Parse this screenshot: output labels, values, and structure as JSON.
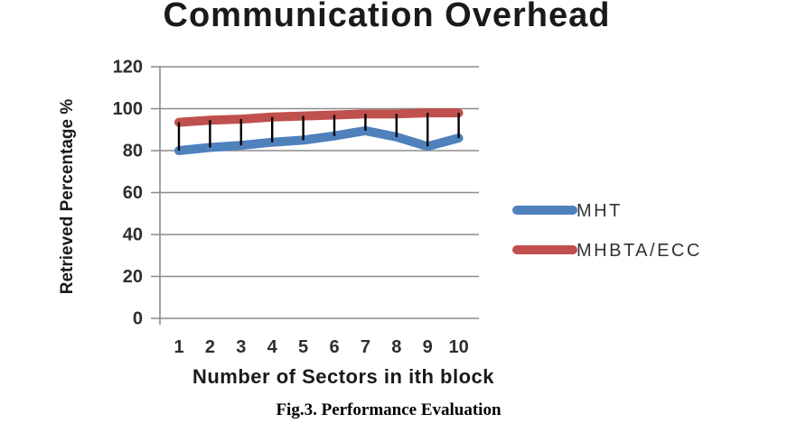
{
  "page": {
    "background": "#ffffff",
    "caption": "Fig.3. Performance Evaluation"
  },
  "chart_data": {
    "type": "line",
    "title": "Communication Overhead",
    "xlabel": "Number of Sectors in ith block",
    "ylabel": "Retrieved Percentage %",
    "categories": [
      1,
      2,
      3,
      4,
      5,
      6,
      7,
      8,
      9,
      10
    ],
    "ylim": [
      0,
      120
    ],
    "yticks": [
      0,
      20,
      40,
      60,
      80,
      100,
      120
    ],
    "grid": true,
    "legend_position": "right",
    "series": [
      {
        "name": "MHT",
        "color": "#4F81BD",
        "values": [
          80,
          81.5,
          82.5,
          84,
          85,
          87,
          89.5,
          86.5,
          82,
          86
        ]
      },
      {
        "name": "MHBTA/ECC",
        "color": "#C0504D",
        "values": [
          93.5,
          94.5,
          95,
          96,
          96.5,
          97,
          97.5,
          97.5,
          98,
          98
        ]
      }
    ],
    "error_bars": {
      "color": "#000000",
      "note": "vertical bar at each x spanning from the MHBTA/ECC value down to the MHT value"
    },
    "style": {
      "gridline_color": "#8C8C8C",
      "axis_color": "#8C8C8C",
      "tick_label_color": "#2E2E2E",
      "axis_title_color": "#1a1a1a",
      "legend_text_color": "#333333"
    }
  }
}
